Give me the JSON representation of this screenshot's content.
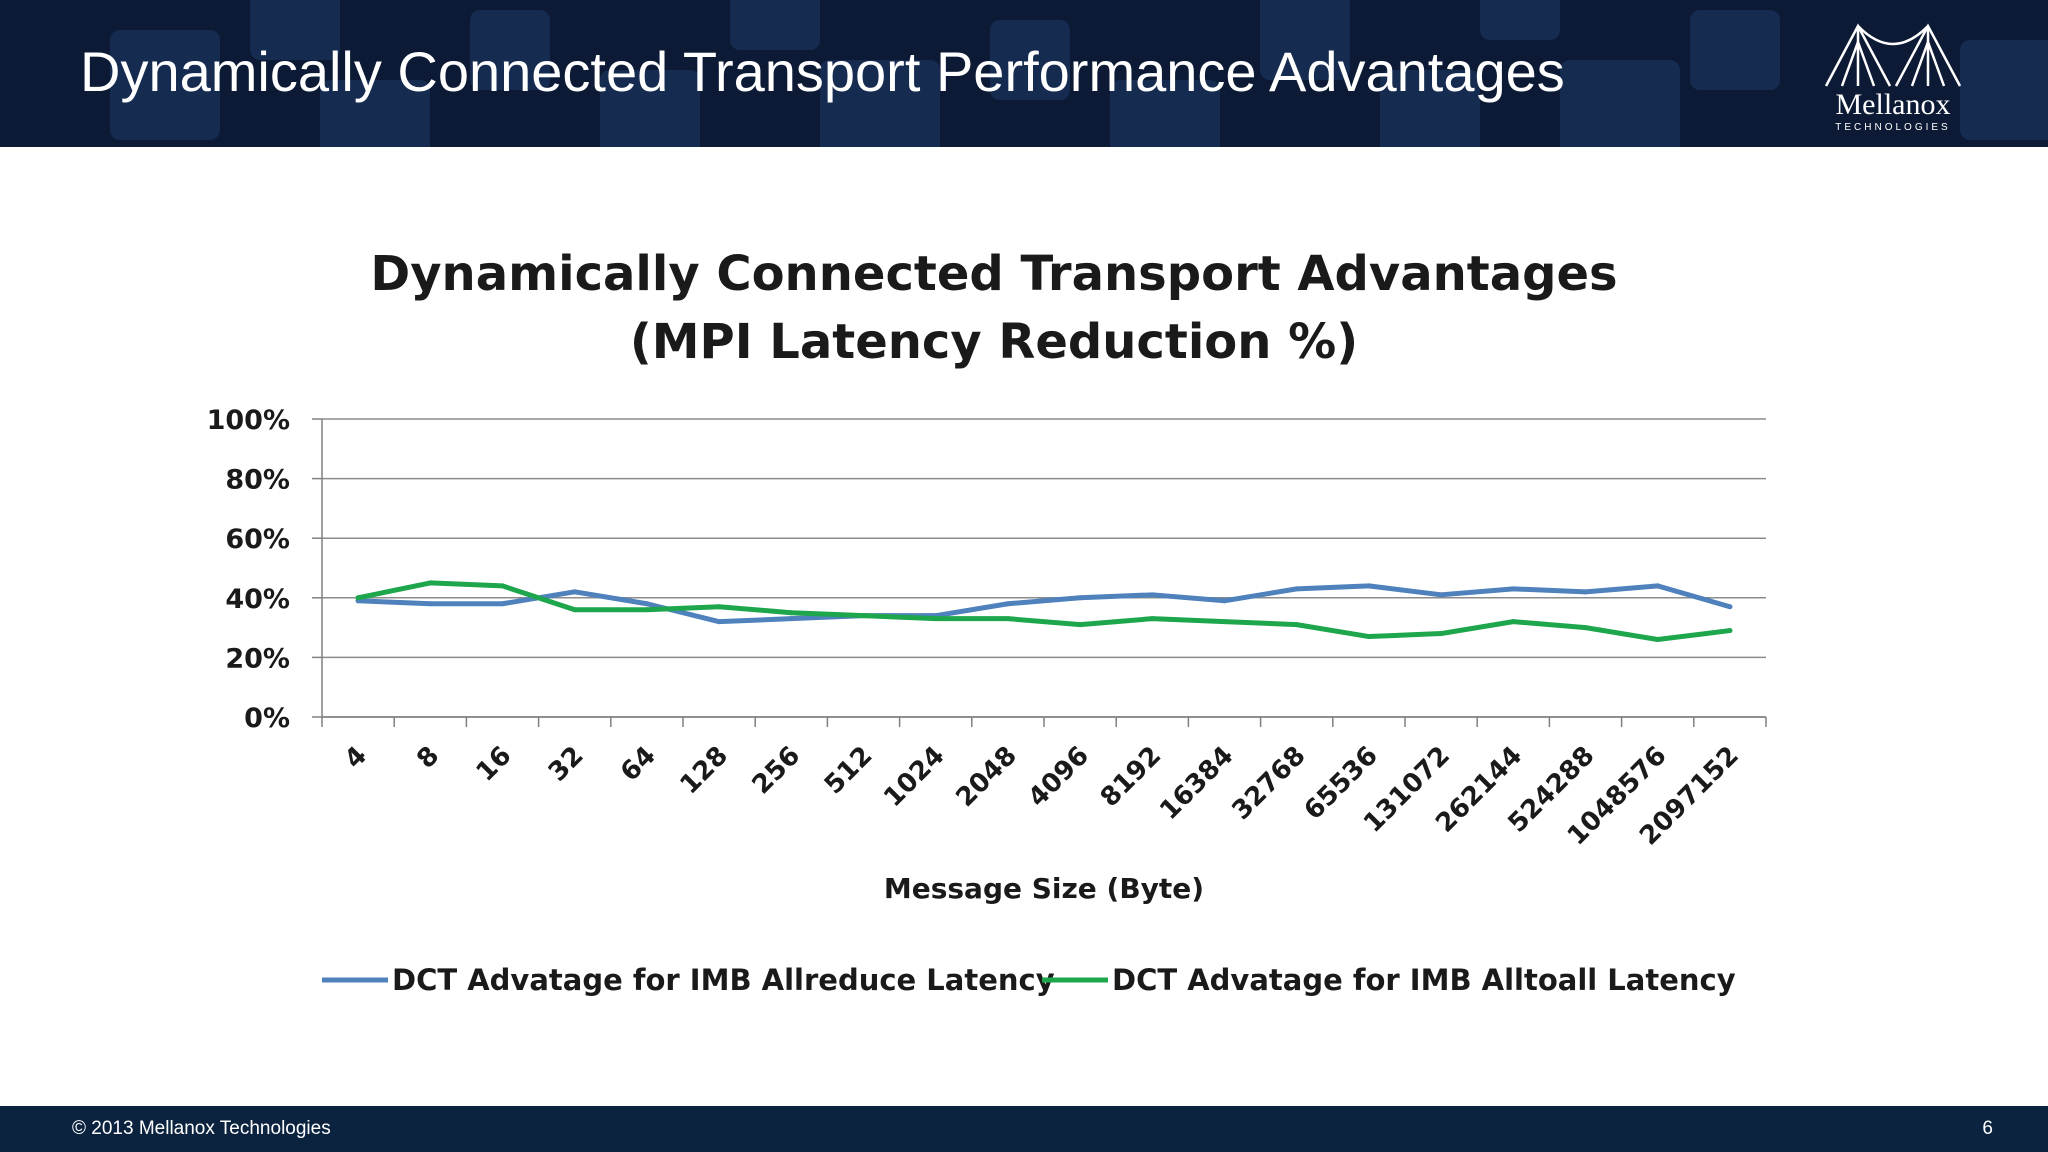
{
  "header": {
    "title": "Dynamically Connected Transport Performance Advantages",
    "logo_name": "Mellanox",
    "logo_sub": "TECHNOLOGIES"
  },
  "chart_data": {
    "type": "line",
    "title_line1": "Dynamically Connected Transport Advantages",
    "title_line2": "(MPI Latency Reduction %)",
    "xlabel": "Message Size (Byte)",
    "ylabel": "",
    "ylim": [
      0,
      100
    ],
    "yticks": [
      "0%",
      "20%",
      "40%",
      "60%",
      "80%",
      "100%"
    ],
    "categories": [
      "4",
      "8",
      "16",
      "32",
      "64",
      "128",
      "256",
      "512",
      "1024",
      "2048",
      "4096",
      "8192",
      "16384",
      "32768",
      "65536",
      "131072",
      "262144",
      "524288",
      "1048576",
      "2097152"
    ],
    "series": [
      {
        "name": "DCT Advatage for IMB Allreduce Latency",
        "color": "#4f81bd",
        "values": [
          39,
          38,
          38,
          42,
          38,
          32,
          33,
          34,
          34,
          38,
          40,
          41,
          39,
          43,
          44,
          41,
          43,
          42,
          44,
          37
        ]
      },
      {
        "name": "DCT Advatage for IMB Alltoall Latency",
        "color": "#1ea64c",
        "values": [
          40,
          45,
          44,
          36,
          36,
          37,
          35,
          34,
          33,
          33,
          31,
          33,
          32,
          31,
          27,
          28,
          32,
          30,
          26,
          29
        ]
      }
    ],
    "grid": true,
    "legend_position": "bottom"
  },
  "footer": {
    "copyright": "© 2013 Mellanox Technologies",
    "page_number": "6"
  }
}
